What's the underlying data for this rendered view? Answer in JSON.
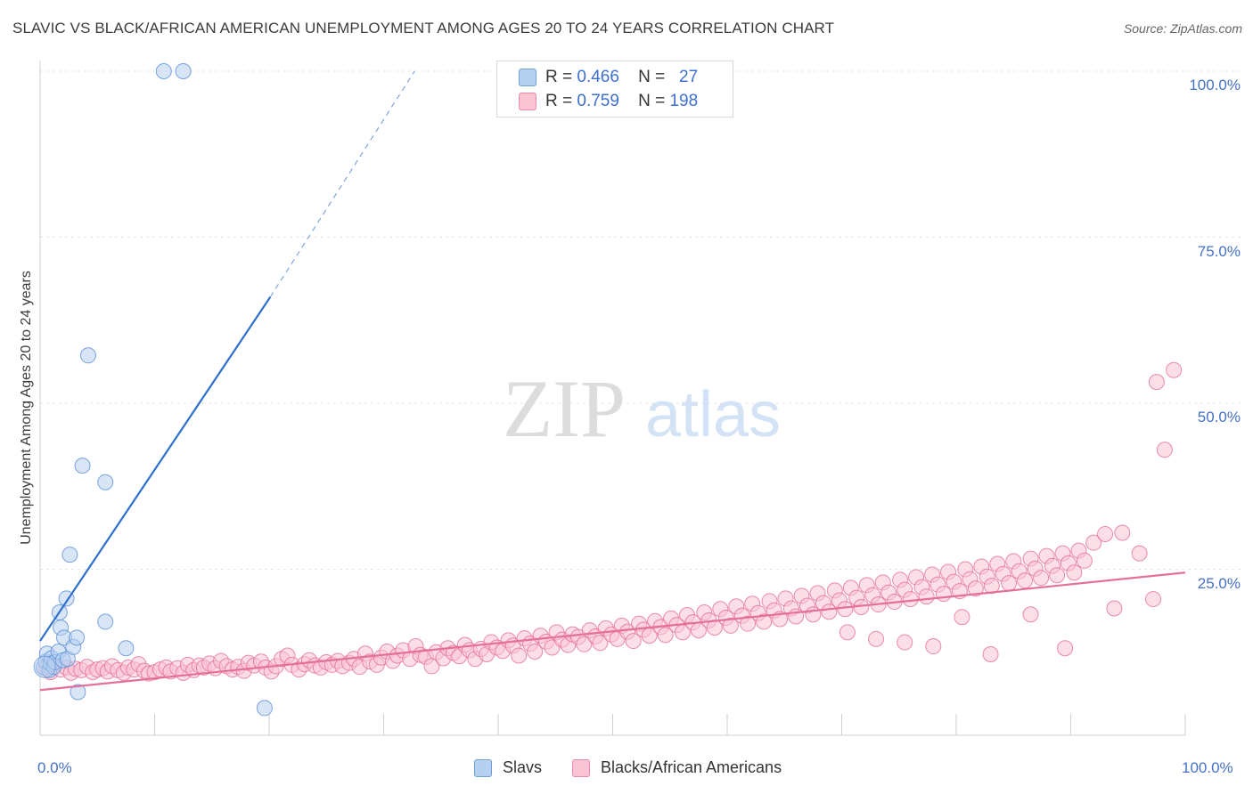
{
  "header": {
    "title": "SLAVIC VS BLACK/AFRICAN AMERICAN UNEMPLOYMENT AMONG AGES 20 TO 24 YEARS CORRELATION CHART",
    "source": "Source: ZipAtlas.com"
  },
  "watermark": {
    "text_zip": "ZIP",
    "text_atlas": "atlas"
  },
  "legend_top": {
    "slavs": {
      "r_label": "R =",
      "r_value": "0.466",
      "n_label": "N =",
      "n_value": "27"
    },
    "blacks": {
      "r_label": "R =",
      "r_value": "0.759",
      "n_label": "N =",
      "n_value": "198"
    }
  },
  "legend_bottom": {
    "slavs": "Slavs",
    "blacks": "Blacks/African Americans"
  },
  "colors": {
    "slavs": "#5b8fd6",
    "slavs_fill": "#b6d0f0",
    "blacks": "#e46f99",
    "blacks_fill": "#f9c3d4",
    "accent_text": "#4472c4"
  },
  "chart_data": {
    "type": "scatter",
    "title": "SLAVIC VS BLACK/AFRICAN AMERICAN UNEMPLOYMENT AMONG AGES 20 TO 24 YEARS CORRELATION CHART",
    "xlabel": "",
    "ylabel": "Unemployment Among Ages 20 to 24 years",
    "xlim": [
      0,
      100
    ],
    "ylim": [
      0,
      100
    ],
    "x_tick_labels": {
      "min": "0.0%",
      "max": "100.0%"
    },
    "y_tick_labels": [
      "100.0%",
      "75.0%",
      "50.0%",
      "25.0%"
    ],
    "y_tick_values": [
      100,
      75,
      50,
      25
    ],
    "series": [
      {
        "name": "Slavs",
        "r": 0.466,
        "n": 27,
        "trend": {
          "x0": 0,
          "y0": 14.2,
          "x1": 20.1,
          "y1": 66.0,
          "dash_to_x": 32.7,
          "dash_to_y": 100
        },
        "points": [
          [
            0.3,
            10.2
          ],
          [
            0.5,
            11.1
          ],
          [
            0.6,
            12.3
          ],
          [
            0.8,
            9.8
          ],
          [
            0.9,
            10.8
          ],
          [
            1.0,
            11.6
          ],
          [
            1.2,
            10.3
          ],
          [
            1.3,
            11.0
          ],
          [
            1.6,
            12.6
          ],
          [
            1.7,
            18.5
          ],
          [
            1.8,
            16.2
          ],
          [
            2.0,
            11.3
          ],
          [
            2.1,
            14.7
          ],
          [
            2.3,
            20.6
          ],
          [
            2.4,
            11.5
          ],
          [
            2.6,
            27.2
          ],
          [
            2.9,
            13.3
          ],
          [
            3.2,
            14.7
          ],
          [
            3.3,
            6.5
          ],
          [
            3.7,
            40.6
          ],
          [
            4.2,
            57.2
          ],
          [
            5.7,
            38.1
          ],
          [
            5.7,
            17.1
          ],
          [
            7.5,
            13.1
          ],
          [
            10.8,
            100.0
          ],
          [
            12.5,
            100.0
          ],
          [
            19.6,
            4.1
          ]
        ]
      },
      {
        "name": "Blacks/African Americans",
        "r": 0.759,
        "n": 198,
        "trend": {
          "x0": 0,
          "y0": 6.8,
          "x1": 100,
          "y1": 24.5
        },
        "points": [
          [
            0.5,
            10.1
          ],
          [
            0.9,
            9.5
          ],
          [
            1.2,
            10.4
          ],
          [
            1.8,
            9.9
          ],
          [
            2.3,
            10.2
          ],
          [
            2.7,
            9.4
          ],
          [
            3.1,
            10.0
          ],
          [
            3.6,
            9.8
          ],
          [
            4.1,
            10.3
          ],
          [
            4.6,
            9.5
          ],
          [
            5.0,
            9.9
          ],
          [
            5.5,
            10.1
          ],
          [
            5.9,
            9.6
          ],
          [
            6.3,
            10.4
          ],
          [
            6.8,
            9.8
          ],
          [
            7.3,
            9.4
          ],
          [
            7.7,
            10.2
          ],
          [
            8.2,
            9.9
          ],
          [
            8.6,
            10.7
          ],
          [
            9.1,
            9.7
          ],
          [
            9.5,
            9.3
          ],
          [
            10.0,
            9.5
          ],
          [
            10.5,
            9.9
          ],
          [
            11.0,
            10.2
          ],
          [
            11.4,
            9.6
          ],
          [
            12.0,
            10.1
          ],
          [
            12.5,
            9.4
          ],
          [
            12.9,
            10.6
          ],
          [
            13.4,
            9.8
          ],
          [
            13.9,
            10.5
          ],
          [
            14.3,
            10.2
          ],
          [
            14.8,
            10.8
          ],
          [
            15.3,
            10.1
          ],
          [
            15.8,
            11.2
          ],
          [
            16.3,
            10.4
          ],
          [
            16.8,
            9.9
          ],
          [
            17.3,
            10.3
          ],
          [
            17.8,
            9.7
          ],
          [
            18.2,
            10.9
          ],
          [
            18.7,
            10.5
          ],
          [
            19.3,
            11.1
          ],
          [
            19.7,
            10.2
          ],
          [
            20.2,
            9.6
          ],
          [
            20.6,
            10.4
          ],
          [
            21.1,
            11.5
          ],
          [
            21.6,
            12.0
          ],
          [
            22.0,
            10.6
          ],
          [
            22.6,
            9.9
          ],
          [
            23.1,
            10.7
          ],
          [
            23.5,
            11.3
          ],
          [
            24.0,
            10.5
          ],
          [
            24.5,
            10.2
          ],
          [
            25.0,
            11.0
          ],
          [
            25.5,
            10.6
          ],
          [
            26.0,
            11.2
          ],
          [
            26.4,
            10.4
          ],
          [
            27.0,
            10.9
          ],
          [
            27.4,
            11.5
          ],
          [
            27.9,
            10.3
          ],
          [
            28.4,
            12.3
          ],
          [
            28.8,
            11.1
          ],
          [
            29.4,
            10.6
          ],
          [
            29.8,
            11.7
          ],
          [
            30.3,
            12.6
          ],
          [
            30.8,
            11.2
          ],
          [
            31.2,
            12.0
          ],
          [
            31.7,
            12.8
          ],
          [
            32.3,
            11.5
          ],
          [
            32.8,
            13.4
          ],
          [
            33.2,
            12.1
          ],
          [
            33.7,
            11.8
          ],
          [
            34.2,
            10.4
          ],
          [
            34.6,
            12.5
          ],
          [
            35.2,
            11.6
          ],
          [
            35.6,
            13.1
          ],
          [
            36.1,
            12.4
          ],
          [
            36.6,
            11.9
          ],
          [
            37.1,
            13.6
          ],
          [
            37.5,
            12.8
          ],
          [
            38.0,
            11.5
          ],
          [
            38.5,
            13.0
          ],
          [
            39.0,
            12.2
          ],
          [
            39.4,
            14.0
          ],
          [
            39.9,
            13.2
          ],
          [
            40.4,
            12.7
          ],
          [
            40.9,
            14.3
          ],
          [
            41.3,
            13.5
          ],
          [
            41.8,
            12.0
          ],
          [
            42.3,
            14.6
          ],
          [
            42.8,
            13.8
          ],
          [
            43.2,
            12.6
          ],
          [
            43.7,
            15.0
          ],
          [
            44.2,
            14.1
          ],
          [
            44.7,
            13.2
          ],
          [
            45.1,
            15.5
          ],
          [
            45.6,
            14.4
          ],
          [
            46.1,
            13.6
          ],
          [
            46.5,
            15.2
          ],
          [
            47.0,
            14.8
          ],
          [
            47.5,
            13.7
          ],
          [
            48.0,
            15.8
          ],
          [
            48.5,
            14.9
          ],
          [
            48.9,
            13.9
          ],
          [
            49.4,
            16.1
          ],
          [
            49.9,
            15.2
          ],
          [
            50.4,
            14.5
          ],
          [
            50.8,
            16.5
          ],
          [
            51.3,
            15.6
          ],
          [
            51.8,
            14.2
          ],
          [
            52.3,
            16.8
          ],
          [
            52.7,
            15.9
          ],
          [
            53.2,
            15.0
          ],
          [
            53.7,
            17.2
          ],
          [
            54.2,
            16.3
          ],
          [
            54.6,
            15.1
          ],
          [
            55.1,
            17.6
          ],
          [
            55.6,
            16.6
          ],
          [
            56.1,
            15.5
          ],
          [
            56.5,
            18.1
          ],
          [
            57.0,
            17.0
          ],
          [
            57.5,
            15.8
          ],
          [
            58.0,
            18.5
          ],
          [
            58.4,
            17.3
          ],
          [
            58.9,
            16.2
          ],
          [
            59.4,
            19.0
          ],
          [
            59.9,
            17.7
          ],
          [
            60.3,
            16.5
          ],
          [
            60.8,
            19.4
          ],
          [
            61.3,
            18.0
          ],
          [
            61.8,
            16.8
          ],
          [
            62.2,
            19.8
          ],
          [
            62.7,
            18.4
          ],
          [
            63.2,
            17.1
          ],
          [
            63.7,
            20.2
          ],
          [
            64.1,
            18.8
          ],
          [
            64.6,
            17.5
          ],
          [
            65.1,
            20.6
          ],
          [
            65.6,
            19.1
          ],
          [
            66.0,
            17.9
          ],
          [
            66.5,
            21.0
          ],
          [
            67.0,
            19.5
          ],
          [
            67.5,
            18.2
          ],
          [
            67.9,
            21.4
          ],
          [
            68.4,
            19.9
          ],
          [
            68.9,
            18.6
          ],
          [
            69.4,
            21.8
          ],
          [
            69.8,
            20.3
          ],
          [
            70.3,
            19.0
          ],
          [
            70.8,
            22.2
          ],
          [
            71.3,
            20.7
          ],
          [
            71.7,
            19.3
          ],
          [
            72.2,
            22.6
          ],
          [
            72.7,
            21.1
          ],
          [
            73.2,
            19.7
          ],
          [
            73.6,
            23.0
          ],
          [
            74.1,
            21.5
          ],
          [
            74.6,
            20.1
          ],
          [
            75.1,
            23.4
          ],
          [
            75.5,
            21.9
          ],
          [
            76.0,
            20.5
          ],
          [
            76.5,
            23.8
          ],
          [
            77.0,
            22.3
          ],
          [
            77.4,
            20.9
          ],
          [
            77.9,
            24.2
          ],
          [
            78.4,
            22.7
          ],
          [
            78.9,
            21.3
          ],
          [
            79.3,
            24.6
          ],
          [
            79.8,
            23.1
          ],
          [
            80.3,
            21.7
          ],
          [
            80.8,
            25.0
          ],
          [
            81.2,
            23.5
          ],
          [
            81.7,
            22.1
          ],
          [
            82.2,
            25.4
          ],
          [
            82.7,
            23.9
          ],
          [
            83.1,
            22.5
          ],
          [
            83.6,
            25.8
          ],
          [
            84.1,
            24.3
          ],
          [
            84.6,
            22.9
          ],
          [
            85.0,
            26.2
          ],
          [
            85.5,
            24.7
          ],
          [
            86.0,
            23.3
          ],
          [
            86.5,
            26.6
          ],
          [
            86.9,
            25.1
          ],
          [
            87.4,
            23.7
          ],
          [
            87.9,
            27.0
          ],
          [
            88.4,
            25.5
          ],
          [
            88.8,
            24.1
          ],
          [
            89.3,
            27.4
          ],
          [
            89.8,
            25.9
          ],
          [
            90.3,
            24.5
          ],
          [
            90.7,
            27.8
          ],
          [
            91.2,
            26.3
          ],
          [
            92.0,
            29.0
          ],
          [
            93.0,
            30.3
          ],
          [
            94.5,
            30.5
          ],
          [
            96.0,
            27.4
          ],
          [
            97.5,
            53.2
          ],
          [
            98.2,
            43.0
          ],
          [
            99.0,
            55.0
          ],
          [
            97.2,
            20.5
          ],
          [
            93.8,
            19.1
          ],
          [
            89.5,
            13.1
          ],
          [
            86.5,
            18.2
          ],
          [
            83.0,
            12.2
          ],
          [
            80.5,
            17.8
          ],
          [
            78.0,
            13.4
          ],
          [
            75.5,
            14.0
          ],
          [
            73.0,
            14.5
          ],
          [
            70.5,
            15.5
          ]
        ]
      }
    ]
  }
}
